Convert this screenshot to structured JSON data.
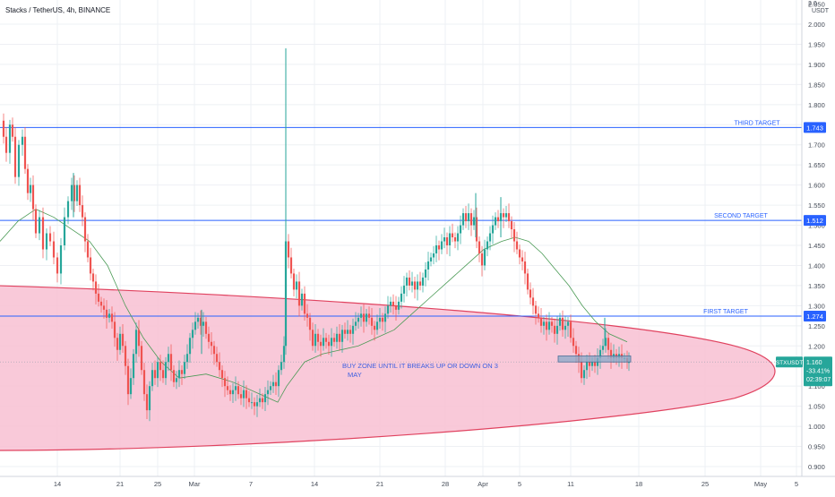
{
  "header": {
    "title": "Stacks / TetherUS, 4h, BINANCE",
    "currency_label": "USDT",
    "ticker_prefix": "2.0"
  },
  "colors": {
    "grid": "#eef0f4",
    "axis_text": "#444b57",
    "level_line": "#2962ff",
    "ellipse_fill": "#f8bfd2",
    "ellipse_stroke": "#e0425f",
    "ma_line": "#4a9a55",
    "bull": "#26a69a",
    "bear": "#ef5350",
    "buy_box_fill": "#8aa8c8",
    "buy_box_stroke": "#4c6e96",
    "annotation_text": "#3c5fe0",
    "price_badge": "#131722"
  },
  "chart_data": {
    "type": "candlestick",
    "title": "Stacks / TetherUS, 4h, BINANCE",
    "ylabel": "USDT",
    "ylim": [
      0.88,
      2.06
    ],
    "y_ticks": [
      "2.050",
      "2.000",
      "1.950",
      "1.900",
      "1.850",
      "1.800",
      "1.750",
      "1.700",
      "1.650",
      "1.600",
      "1.550",
      "1.500",
      "1.450",
      "1.400",
      "1.350",
      "1.300",
      "1.250",
      "1.200",
      "1.150",
      "1.100",
      "1.050",
      "1.000",
      "0.950",
      "0.900"
    ],
    "x_ticks": [
      "14",
      "21",
      "25",
      "Mar",
      "7",
      "14",
      "21",
      "28",
      "Apr",
      "5",
      "11",
      "18",
      "25",
      "May",
      "5"
    ],
    "grid": true,
    "price_path": [
      [
        0,
        1.76
      ],
      [
        4,
        1.72
      ],
      [
        7,
        1.68
      ],
      [
        11,
        1.75
      ],
      [
        14,
        1.72
      ],
      [
        17,
        1.62
      ],
      [
        21,
        1.7
      ],
      [
        25,
        1.72
      ],
      [
        28,
        1.64
      ],
      [
        31,
        1.58
      ],
      [
        34,
        1.6
      ],
      [
        37,
        1.54
      ],
      [
        40,
        1.48
      ],
      [
        44,
        1.52
      ],
      [
        48,
        1.44
      ],
      [
        52,
        1.48
      ],
      [
        56,
        1.46
      ],
      [
        60,
        1.42
      ],
      [
        64,
        1.38
      ],
      [
        68,
        1.45
      ],
      [
        72,
        1.52
      ],
      [
        76,
        1.56
      ],
      [
        80,
        1.6
      ],
      [
        83,
        1.56
      ],
      [
        86,
        1.6
      ],
      [
        89,
        1.55
      ],
      [
        92,
        1.52
      ],
      [
        95,
        1.46
      ],
      [
        98,
        1.42
      ],
      [
        101,
        1.38
      ],
      [
        104,
        1.36
      ],
      [
        107,
        1.33
      ],
      [
        110,
        1.31
      ],
      [
        113,
        1.3
      ],
      [
        116,
        1.29
      ],
      [
        119,
        1.27
      ],
      [
        122,
        1.28
      ],
      [
        125,
        1.26
      ],
      [
        128,
        1.22
      ],
      [
        131,
        1.19
      ],
      [
        134,
        1.23
      ],
      [
        137,
        1.2
      ],
      [
        140,
        1.15
      ],
      [
        143,
        1.08
      ],
      [
        146,
        1.12
      ],
      [
        149,
        1.18
      ],
      [
        152,
        1.24
      ],
      [
        155,
        1.2
      ],
      [
        158,
        1.14
      ],
      [
        161,
        1.08
      ],
      [
        164,
        1.04
      ],
      [
        167,
        1.1
      ],
      [
        170,
        1.14
      ],
      [
        173,
        1.12
      ],
      [
        176,
        1.16
      ],
      [
        179,
        1.14
      ],
      [
        182,
        1.12
      ],
      [
        185,
        1.16
      ],
      [
        188,
        1.18
      ],
      [
        191,
        1.14
      ],
      [
        194,
        1.11
      ],
      [
        197,
        1.12
      ],
      [
        200,
        1.14
      ],
      [
        203,
        1.13
      ],
      [
        206,
        1.16
      ],
      [
        209,
        1.18
      ],
      [
        212,
        1.22
      ],
      [
        215,
        1.24
      ],
      [
        218,
        1.26
      ],
      [
        221,
        1.27
      ],
      [
        224,
        1.25
      ],
      [
        227,
        1.26
      ],
      [
        230,
        1.23
      ],
      [
        233,
        1.21
      ],
      [
        236,
        1.2
      ],
      [
        239,
        1.18
      ],
      [
        242,
        1.16
      ],
      [
        245,
        1.14
      ],
      [
        248,
        1.12
      ],
      [
        251,
        1.1
      ],
      [
        254,
        1.09
      ],
      [
        257,
        1.08
      ],
      [
        260,
        1.09
      ],
      [
        263,
        1.1
      ],
      [
        266,
        1.08
      ],
      [
        269,
        1.07
      ],
      [
        272,
        1.09
      ],
      [
        275,
        1.07
      ],
      [
        278,
        1.06
      ],
      [
        281,
        1.06
      ],
      [
        284,
        1.05
      ],
      [
        287,
        1.06
      ],
      [
        290,
        1.07
      ],
      [
        293,
        1.06
      ],
      [
        296,
        1.08
      ],
      [
        299,
        1.09
      ],
      [
        302,
        1.1
      ],
      [
        305,
        1.11
      ],
      [
        308,
        1.1
      ],
      [
        311,
        1.14
      ],
      [
        314,
        1.16
      ],
      [
        317,
        1.2
      ],
      [
        319,
        1.46
      ],
      [
        322,
        1.42
      ],
      [
        325,
        1.38
      ],
      [
        328,
        1.34
      ],
      [
        331,
        1.36
      ],
      [
        334,
        1.3
      ],
      [
        337,
        1.33
      ],
      [
        340,
        1.28
      ],
      [
        343,
        1.27
      ],
      [
        346,
        1.24
      ],
      [
        349,
        1.2
      ],
      [
        352,
        1.23
      ],
      [
        355,
        1.21
      ],
      [
        358,
        1.2
      ],
      [
        361,
        1.22
      ],
      [
        364,
        1.21
      ],
      [
        367,
        1.2
      ],
      [
        370,
        1.22
      ],
      [
        373,
        1.21
      ],
      [
        376,
        1.23
      ],
      [
        379,
        1.21
      ],
      [
        382,
        1.24
      ],
      [
        385,
        1.23
      ],
      [
        388,
        1.24
      ],
      [
        391,
        1.23
      ],
      [
        394,
        1.25
      ],
      [
        397,
        1.26
      ],
      [
        400,
        1.27
      ],
      [
        403,
        1.28
      ],
      [
        406,
        1.26
      ],
      [
        409,
        1.28
      ],
      [
        412,
        1.27
      ],
      [
        415,
        1.25
      ],
      [
        418,
        1.24
      ],
      [
        421,
        1.26
      ],
      [
        424,
        1.27
      ],
      [
        427,
        1.26
      ],
      [
        430,
        1.28
      ],
      [
        433,
        1.3
      ],
      [
        436,
        1.31
      ],
      [
        439,
        1.3
      ],
      [
        442,
        1.29
      ],
      [
        445,
        1.31
      ],
      [
        448,
        1.33
      ],
      [
        451,
        1.35
      ],
      [
        454,
        1.37
      ],
      [
        457,
        1.35
      ],
      [
        460,
        1.36
      ],
      [
        463,
        1.34
      ],
      [
        466,
        1.36
      ],
      [
        469,
        1.35
      ],
      [
        472,
        1.37
      ],
      [
        475,
        1.39
      ],
      [
        478,
        1.41
      ],
      [
        481,
        1.42
      ],
      [
        484,
        1.43
      ],
      [
        487,
        1.45
      ],
      [
        490,
        1.44
      ],
      [
        493,
        1.46
      ],
      [
        496,
        1.47
      ],
      [
        499,
        1.45
      ],
      [
        502,
        1.48
      ],
      [
        505,
        1.47
      ],
      [
        508,
        1.46
      ],
      [
        511,
        1.48
      ],
      [
        514,
        1.5
      ],
      [
        517,
        1.53
      ],
      [
        520,
        1.51
      ],
      [
        523,
        1.53
      ],
      [
        526,
        1.5
      ],
      [
        529,
        1.52
      ],
      [
        532,
        1.46
      ],
      [
        535,
        1.43
      ],
      [
        538,
        1.4
      ],
      [
        541,
        1.44
      ],
      [
        544,
        1.46
      ],
      [
        547,
        1.48
      ],
      [
        550,
        1.5
      ],
      [
        553,
        1.52
      ],
      [
        556,
        1.51
      ],
      [
        559,
        1.53
      ],
      [
        562,
        1.52
      ],
      [
        565,
        1.53
      ],
      [
        568,
        1.51
      ],
      [
        571,
        1.49
      ],
      [
        574,
        1.46
      ],
      [
        577,
        1.44
      ],
      [
        580,
        1.42
      ],
      [
        583,
        1.41
      ],
      [
        586,
        1.38
      ],
      [
        589,
        1.34
      ],
      [
        592,
        1.32
      ],
      [
        595,
        1.3
      ],
      [
        598,
        1.28
      ],
      [
        601,
        1.27
      ],
      [
        604,
        1.25
      ],
      [
        607,
        1.26
      ],
      [
        610,
        1.24
      ],
      [
        613,
        1.26
      ],
      [
        616,
        1.25
      ],
      [
        619,
        1.23
      ],
      [
        622,
        1.25
      ],
      [
        625,
        1.27
      ],
      [
        628,
        1.24
      ],
      [
        631,
        1.25
      ],
      [
        634,
        1.26
      ],
      [
        637,
        1.22
      ],
      [
        640,
        1.2
      ],
      [
        643,
        1.18
      ],
      [
        646,
        1.16
      ],
      [
        649,
        1.12
      ],
      [
        652,
        1.14
      ],
      [
        655,
        1.16
      ],
      [
        658,
        1.15
      ],
      [
        661,
        1.16
      ],
      [
        664,
        1.15
      ],
      [
        667,
        1.17
      ],
      [
        670,
        1.19
      ],
      [
        673,
        1.2
      ],
      [
        676,
        1.22
      ],
      [
        679,
        1.19
      ],
      [
        682,
        1.17
      ],
      [
        685,
        1.18
      ],
      [
        688,
        1.17
      ],
      [
        691,
        1.18
      ],
      [
        694,
        1.17
      ],
      [
        697,
        1.17
      ],
      [
        700,
        1.16
      ],
      [
        702,
        1.16
      ]
    ],
    "spikes": [
      {
        "x": 319,
        "high": 1.94,
        "low": 1.23
      },
      {
        "x": 559,
        "high": 1.57,
        "low": 1.47
      },
      {
        "x": 531,
        "high": 1.58,
        "low": 1.47
      },
      {
        "x": 82,
        "high": 1.63,
        "low": 1.52
      },
      {
        "x": 225,
        "high": 1.29,
        "low": 1.18
      },
      {
        "x": 675,
        "high": 1.27,
        "low": 1.2
      }
    ],
    "moving_average": [
      [
        0,
        1.46
      ],
      [
        20,
        1.51
      ],
      [
        40,
        1.54
      ],
      [
        60,
        1.52
      ],
      [
        80,
        1.49
      ],
      [
        100,
        1.46
      ],
      [
        120,
        1.4
      ],
      [
        140,
        1.3
      ],
      [
        160,
        1.22
      ],
      [
        180,
        1.16
      ],
      [
        200,
        1.12
      ],
      [
        230,
        1.13
      ],
      [
        260,
        1.11
      ],
      [
        290,
        1.08
      ],
      [
        310,
        1.06
      ],
      [
        320,
        1.1
      ],
      [
        340,
        1.16
      ],
      [
        360,
        1.18
      ],
      [
        380,
        1.19
      ],
      [
        400,
        1.2
      ],
      [
        420,
        1.22
      ],
      [
        440,
        1.24
      ],
      [
        460,
        1.28
      ],
      [
        480,
        1.32
      ],
      [
        500,
        1.36
      ],
      [
        520,
        1.4
      ],
      [
        540,
        1.44
      ],
      [
        560,
        1.46
      ],
      [
        575,
        1.47
      ],
      [
        590,
        1.46
      ],
      [
        605,
        1.43
      ],
      [
        620,
        1.39
      ],
      [
        635,
        1.35
      ],
      [
        650,
        1.3
      ],
      [
        665,
        1.26
      ],
      [
        680,
        1.23
      ],
      [
        700,
        1.21
      ]
    ],
    "levels": [
      {
        "label": "THIRD TARGET",
        "value": 1.743,
        "badge": "1.743"
      },
      {
        "label": "SECOND TARGET",
        "value": 1.512,
        "badge": "1.512"
      },
      {
        "label": "FIRST TARGET",
        "value": 1.274,
        "badge": "1.274"
      }
    ],
    "current_price_line": 1.16,
    "buy_zone": {
      "label_line1": "BUY ZONE   UNTIL IT BREAKS UP  OR  DOWN  ON 3",
      "label_line2": "MAY",
      "box_top": 1.175,
      "box_bottom": 1.16
    },
    "badge": {
      "symbol": "STXUSDT",
      "price": "1.160",
      "change": "-33.41%",
      "countdown": "02:39:07"
    }
  }
}
